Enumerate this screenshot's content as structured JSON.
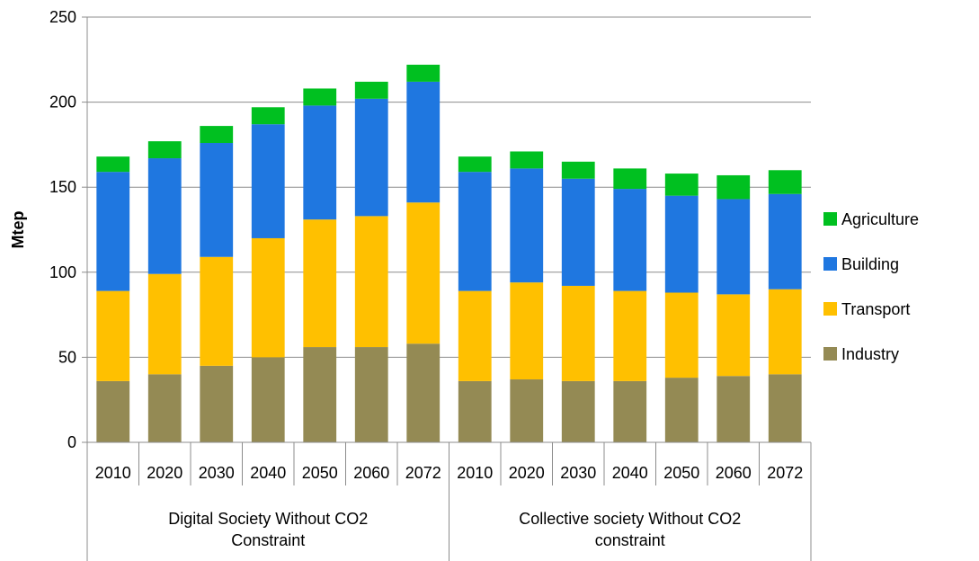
{
  "chart_data": {
    "type": "bar",
    "stacked": true,
    "ylabel": "Mtep",
    "xlabel": "",
    "ylim": [
      0,
      250
    ],
    "yticks": [
      0,
      50,
      100,
      150,
      200,
      250
    ],
    "grid": true,
    "legend_position": "right",
    "categories": [
      "2010",
      "2020",
      "2030",
      "2040",
      "2050",
      "2060",
      "2072",
      "2010",
      "2020",
      "2030",
      "2040",
      "2050",
      "2060",
      "2072"
    ],
    "groups": [
      {
        "label": "Digital Society Without CO2 Constraint",
        "span": 7
      },
      {
        "label": "Collective society Without CO2 constraint",
        "span": 7
      }
    ],
    "series": [
      {
        "name": "Industry",
        "color": "#948a54",
        "values": [
          36,
          40,
          45,
          50,
          56,
          56,
          58,
          36,
          37,
          36,
          36,
          38,
          39,
          40
        ]
      },
      {
        "name": "Transport",
        "color": "#ffc000",
        "values": [
          53,
          59,
          64,
          70,
          75,
          77,
          83,
          53,
          57,
          56,
          53,
          50,
          48,
          50
        ]
      },
      {
        "name": "Building",
        "color": "#1f77e0",
        "values": [
          70,
          68,
          67,
          67,
          67,
          69,
          71,
          70,
          67,
          63,
          60,
          57,
          56,
          56
        ]
      },
      {
        "name": "Agriculture",
        "color": "#00c020",
        "values": [
          9,
          10,
          10,
          10,
          10,
          10,
          10,
          9,
          10,
          10,
          12,
          13,
          14,
          14
        ]
      }
    ]
  }
}
